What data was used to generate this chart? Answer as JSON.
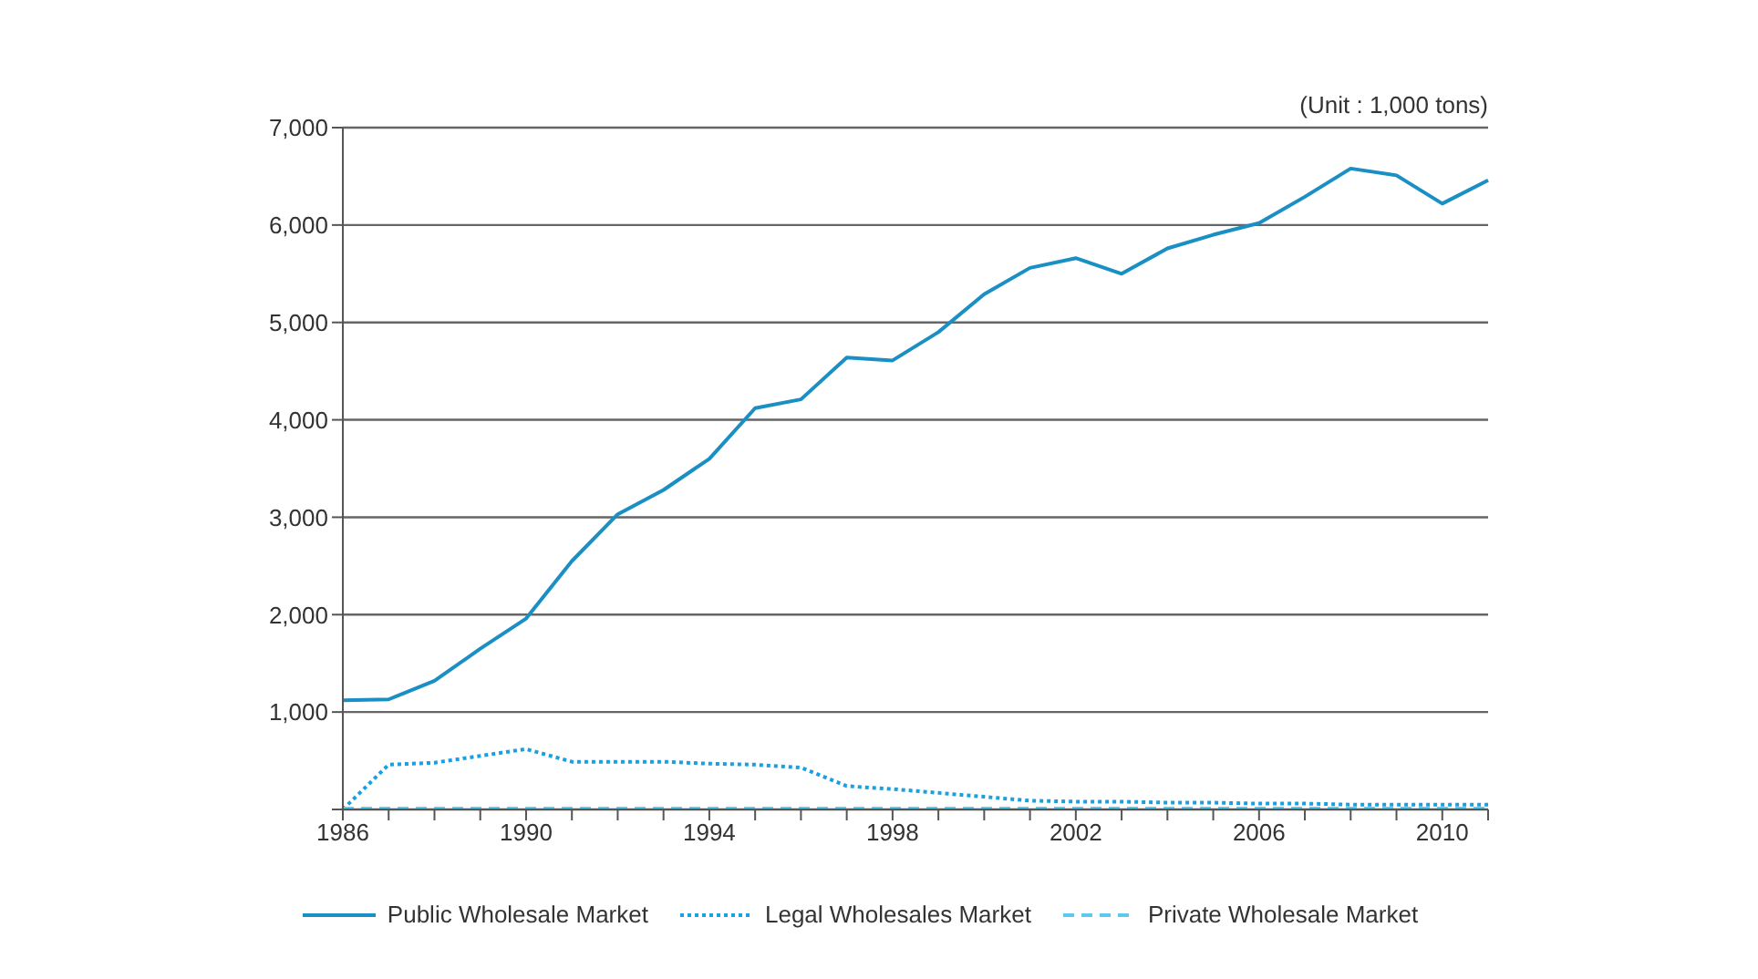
{
  "chart_data": {
    "type": "line",
    "categories": [
      "1986",
      null,
      null,
      null,
      "1990",
      null,
      null,
      null,
      "1994",
      null,
      null,
      null,
      "1998",
      null,
      null,
      null,
      "2002",
      null,
      null,
      null,
      "2006",
      null,
      null,
      null,
      "2010",
      null
    ],
    "series": [
      {
        "name": "Public Wholesale Market",
        "color": "#1a8fc4",
        "line_style": "solid",
        "values": [
          1120,
          1130,
          1320,
          1650,
          1960,
          2550,
          3030,
          3280,
          3600,
          4120,
          4210,
          4640,
          4610,
          4900,
          5290,
          5560,
          5660,
          5500,
          5760,
          5900,
          6020,
          6290,
          6580,
          6510,
          6220,
          6460
        ]
      },
      {
        "name": "Legal Wholesales Market",
        "color": "#1aa0e0",
        "line_style": "dotted",
        "values": [
          0,
          460,
          480,
          550,
          620,
          490,
          490,
          490,
          470,
          460,
          430,
          240,
          210,
          170,
          130,
          90,
          80,
          80,
          70,
          70,
          60,
          60,
          50,
          50,
          50,
          50
        ]
      },
      {
        "name": "Private Wholesale Market",
        "color": "#5bc8ee",
        "line_style": "dashed",
        "values": [
          10,
          10,
          10,
          10,
          10,
          10,
          10,
          10,
          10,
          10,
          10,
          10,
          10,
          10,
          10,
          10,
          10,
          10,
          10,
          10,
          10,
          10,
          10,
          10,
          10,
          10
        ]
      }
    ],
    "ylim": [
      0,
      7000
    ],
    "yticks": [
      {
        "value": 0,
        "label": null
      },
      {
        "value": 1000,
        "label": "1,000"
      },
      {
        "value": 2000,
        "label": "2,000"
      },
      {
        "value": 3000,
        "label": "3,000"
      },
      {
        "value": 4000,
        "label": "4,000"
      },
      {
        "value": 5000,
        "label": "5,000"
      },
      {
        "value": 6000,
        "label": "6,000"
      },
      {
        "value": 7000,
        "label": "7,000"
      }
    ],
    "grid": "y",
    "legend": "bottom",
    "marker": "none",
    "annotations": [
      "(Unit : 1,000 tons)"
    ]
  }
}
